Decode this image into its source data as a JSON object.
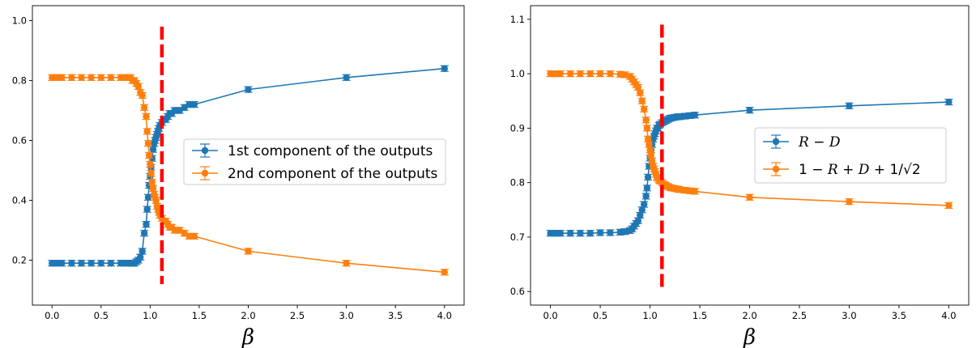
{
  "chart_data": [
    {
      "type": "line",
      "xlabel": "β",
      "ylabel": "",
      "xlim": [
        -0.2,
        4.2
      ],
      "ylim": [
        0.05,
        1.05
      ],
      "xticks": [
        0.0,
        0.5,
        1.0,
        1.5,
        2.0,
        2.5,
        3.0,
        3.5,
        4.0
      ],
      "xtick_labels": [
        "0.0",
        "0.5",
        "1.0",
        "1.5",
        "2.0",
        "2.5",
        "3.0",
        "3.5",
        "4.0"
      ],
      "yticks": [
        0.2,
        0.4,
        0.6,
        0.8,
        1.0
      ],
      "ytick_labels": [
        "0.2",
        "0.4",
        "0.6",
        "0.8",
        "1.0"
      ],
      "error_bars": true,
      "legend_position": "center-right",
      "vline": {
        "x": 1.12,
        "ymin": 0.12,
        "ymax": 0.98,
        "color": "#ff0000",
        "style": "dashed"
      },
      "x": [
        0.0,
        0.05,
        0.1,
        0.2,
        0.3,
        0.4,
        0.5,
        0.6,
        0.7,
        0.75,
        0.8,
        0.82,
        0.84,
        0.86,
        0.88,
        0.9,
        0.92,
        0.94,
        0.96,
        0.97,
        0.98,
        0.99,
        1.0,
        1.01,
        1.02,
        1.03,
        1.04,
        1.05,
        1.06,
        1.07,
        1.08,
        1.09,
        1.1,
        1.12,
        1.14,
        1.16,
        1.18,
        1.2,
        1.22,
        1.25,
        1.28,
        1.3,
        1.35,
        1.4,
        1.45,
        2.0,
        3.0,
        4.0
      ],
      "series": [
        {
          "name": "1st component of the outputs",
          "color": "#1f77b4",
          "values": [
            0.19,
            0.19,
            0.19,
            0.19,
            0.19,
            0.19,
            0.19,
            0.19,
            0.19,
            0.19,
            0.19,
            0.19,
            0.19,
            0.195,
            0.2,
            0.21,
            0.23,
            0.29,
            0.32,
            0.37,
            0.41,
            0.45,
            0.48,
            0.51,
            0.54,
            0.57,
            0.59,
            0.6,
            0.61,
            0.62,
            0.63,
            0.64,
            0.65,
            0.66,
            0.67,
            0.67,
            0.68,
            0.69,
            0.69,
            0.7,
            0.7,
            0.7,
            0.71,
            0.72,
            0.72,
            0.77,
            0.81,
            0.84
          ]
        },
        {
          "name": "2nd component of the outputs",
          "color": "#ff7f0e",
          "values": [
            0.81,
            0.81,
            0.81,
            0.81,
            0.81,
            0.81,
            0.81,
            0.81,
            0.81,
            0.81,
            0.81,
            0.8,
            0.8,
            0.79,
            0.78,
            0.76,
            0.75,
            0.71,
            0.68,
            0.63,
            0.59,
            0.55,
            0.52,
            0.49,
            0.46,
            0.44,
            0.42,
            0.41,
            0.4,
            0.38,
            0.37,
            0.36,
            0.35,
            0.34,
            0.33,
            0.33,
            0.32,
            0.31,
            0.31,
            0.3,
            0.3,
            0.3,
            0.29,
            0.28,
            0.28,
            0.23,
            0.19,
            0.16
          ]
        }
      ]
    },
    {
      "type": "line",
      "xlabel": "β",
      "ylabel": "",
      "xlim": [
        -0.2,
        4.2
      ],
      "ylim": [
        0.575,
        1.125
      ],
      "xticks": [
        0.0,
        0.5,
        1.0,
        1.5,
        2.0,
        2.5,
        3.0,
        3.5,
        4.0
      ],
      "xtick_labels": [
        "0.0",
        "0.5",
        "1.0",
        "1.5",
        "2.0",
        "2.5",
        "3.0",
        "3.5",
        "4.0"
      ],
      "yticks": [
        0.6,
        0.7,
        0.8,
        0.9,
        1.0,
        1.1
      ],
      "ytick_labels": [
        "0.6",
        "0.7",
        "0.8",
        "0.9",
        "1.0",
        "1.1"
      ],
      "error_bars": true,
      "legend_position": "center-right",
      "vline": {
        "x": 1.12,
        "ymin": 0.6,
        "ymax": 1.09,
        "color": "#ff0000",
        "style": "dashed"
      },
      "x": [
        0.0,
        0.05,
        0.1,
        0.2,
        0.3,
        0.4,
        0.5,
        0.6,
        0.7,
        0.75,
        0.8,
        0.82,
        0.84,
        0.86,
        0.88,
        0.9,
        0.92,
        0.94,
        0.96,
        0.97,
        0.98,
        0.99,
        1.0,
        1.01,
        1.02,
        1.03,
        1.04,
        1.05,
        1.06,
        1.07,
        1.08,
        1.09,
        1.1,
        1.12,
        1.14,
        1.16,
        1.18,
        1.2,
        1.22,
        1.25,
        1.28,
        1.3,
        1.35,
        1.4,
        1.45,
        2.0,
        3.0,
        4.0
      ],
      "series": [
        {
          "name": "R − D",
          "color": "#1f77b4",
          "values": [
            0.707,
            0.707,
            0.707,
            0.707,
            0.707,
            0.707,
            0.708,
            0.708,
            0.709,
            0.71,
            0.712,
            0.715,
            0.72,
            0.725,
            0.73,
            0.74,
            0.75,
            0.76,
            0.775,
            0.79,
            0.81,
            0.83,
            0.845,
            0.86,
            0.87,
            0.88,
            0.885,
            0.89,
            0.895,
            0.9,
            0.9,
            0.905,
            0.907,
            0.91,
            0.912,
            0.914,
            0.916,
            0.918,
            0.919,
            0.92,
            0.921,
            0.921,
            0.922,
            0.923,
            0.924,
            0.933,
            0.941,
            0.948
          ]
        },
        {
          "name": "1 − R + D + 1/√2",
          "color": "#ff7f0e",
          "values": [
            1.0,
            1.0,
            1.0,
            1.0,
            1.0,
            1.0,
            1.0,
            1.0,
            0.999,
            0.998,
            0.995,
            0.99,
            0.985,
            0.98,
            0.975,
            0.965,
            0.95,
            0.935,
            0.915,
            0.9,
            0.88,
            0.87,
            0.86,
            0.85,
            0.84,
            0.83,
            0.825,
            0.82,
            0.815,
            0.81,
            0.808,
            0.805,
            0.803,
            0.8,
            0.797,
            0.795,
            0.793,
            0.791,
            0.79,
            0.789,
            0.788,
            0.787,
            0.786,
            0.785,
            0.784,
            0.773,
            0.765,
            0.758
          ]
        }
      ]
    }
  ]
}
